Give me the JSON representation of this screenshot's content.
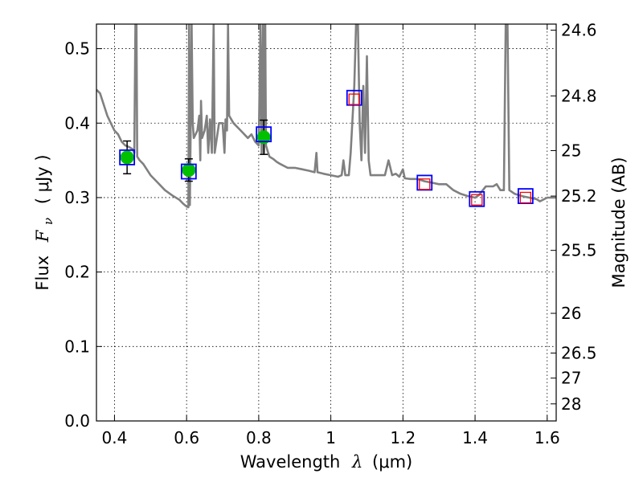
{
  "chart_data": {
    "type": "scatter",
    "xlabel": {
      "prefix": "Wavelength",
      "symbol": "λ",
      "unit": "(μm)"
    },
    "ylabel": {
      "prefix": "Flux",
      "symbol": "F",
      "subscript": "ν",
      "unit": "( μJy )"
    },
    "y2label": "Magnitude (AB)",
    "xlim": [
      0.35,
      1.625
    ],
    "ylim": [
      0.0,
      0.533
    ],
    "grid": true,
    "x_ticks": [
      {
        "value": 0.4,
        "label": "0.4"
      },
      {
        "value": 0.6,
        "label": "0.6"
      },
      {
        "value": 0.8,
        "label": "0.8"
      },
      {
        "value": 1.0,
        "label": "1"
      },
      {
        "value": 1.2,
        "label": "1.2"
      },
      {
        "value": 1.4,
        "label": "1.4"
      },
      {
        "value": 1.6,
        "label": "1.6"
      }
    ],
    "y_ticks": [
      {
        "value": 0.0,
        "label": "0.0"
      },
      {
        "value": 0.1,
        "label": "0.1"
      },
      {
        "value": 0.2,
        "label": "0.2"
      },
      {
        "value": 0.3,
        "label": "0.3"
      },
      {
        "value": 0.4,
        "label": "0.4"
      },
      {
        "value": 0.5,
        "label": "0.5"
      }
    ],
    "y2_ticks": [
      {
        "value": 24.6,
        "label": "24.6"
      },
      {
        "value": 24.8,
        "label": "24.8"
      },
      {
        "value": 25.0,
        "label": "25"
      },
      {
        "value": 25.2,
        "label": "25.2"
      },
      {
        "value": 25.5,
        "label": "25.5"
      },
      {
        "value": 26.0,
        "label": "26"
      },
      {
        "value": 26.5,
        "label": "26.5"
      },
      {
        "value": 27.0,
        "label": "27"
      },
      {
        "value": 28.0,
        "label": "28"
      }
    ],
    "series": [
      {
        "style": "model-spectrum-line",
        "color": "#808080",
        "points": [
          [
            0.35,
            0.445
          ],
          [
            0.36,
            0.44
          ],
          [
            0.37,
            0.425
          ],
          [
            0.38,
            0.41
          ],
          [
            0.39,
            0.4
          ],
          [
            0.4,
            0.39
          ],
          [
            0.41,
            0.385
          ],
          [
            0.42,
            0.375
          ],
          [
            0.43,
            0.37
          ],
          [
            0.44,
            0.368
          ],
          [
            0.45,
            0.365
          ],
          [
            0.455,
            0.36
          ],
          [
            0.458,
            0.533
          ],
          [
            0.461,
            0.533
          ],
          [
            0.463,
            0.355
          ],
          [
            0.47,
            0.35
          ],
          [
            0.48,
            0.345
          ],
          [
            0.5,
            0.33
          ],
          [
            0.52,
            0.32
          ],
          [
            0.54,
            0.31
          ],
          [
            0.56,
            0.303
          ],
          [
            0.58,
            0.297
          ],
          [
            0.59,
            0.292
          ],
          [
            0.6,
            0.288
          ],
          [
            0.605,
            0.287
          ],
          [
            0.607,
            0.533
          ],
          [
            0.609,
            0.29
          ],
          [
            0.612,
            0.42
          ],
          [
            0.614,
            0.533
          ],
          [
            0.617,
            0.4
          ],
          [
            0.62,
            0.38
          ],
          [
            0.63,
            0.39
          ],
          [
            0.635,
            0.41
          ],
          [
            0.638,
            0.35
          ],
          [
            0.64,
            0.43
          ],
          [
            0.643,
            0.38
          ],
          [
            0.65,
            0.39
          ],
          [
            0.656,
            0.41
          ],
          [
            0.66,
            0.36
          ],
          [
            0.665,
            0.405
          ],
          [
            0.67,
            0.36
          ],
          [
            0.675,
            0.533
          ],
          [
            0.678,
            0.36
          ],
          [
            0.69,
            0.4
          ],
          [
            0.7,
            0.4
          ],
          [
            0.705,
            0.36
          ],
          [
            0.708,
            0.405
          ],
          [
            0.712,
            0.39
          ],
          [
            0.715,
            0.533
          ],
          [
            0.718,
            0.41
          ],
          [
            0.73,
            0.4
          ],
          [
            0.75,
            0.39
          ],
          [
            0.77,
            0.38
          ],
          [
            0.78,
            0.385
          ],
          [
            0.79,
            0.375
          ],
          [
            0.8,
            0.37
          ],
          [
            0.805,
            0.533
          ],
          [
            0.808,
            0.36
          ],
          [
            0.812,
            0.533
          ],
          [
            0.815,
            0.36
          ],
          [
            0.818,
            0.533
          ],
          [
            0.82,
            0.37
          ],
          [
            0.825,
            0.362
          ],
          [
            0.83,
            0.355
          ],
          [
            0.84,
            0.352
          ],
          [
            0.85,
            0.348
          ],
          [
            0.86,
            0.345
          ],
          [
            0.88,
            0.34
          ],
          [
            0.9,
            0.34
          ],
          [
            0.92,
            0.338
          ],
          [
            0.94,
            0.336
          ],
          [
            0.955,
            0.334
          ],
          [
            0.96,
            0.36
          ],
          [
            0.963,
            0.334
          ],
          [
            0.98,
            0.332
          ],
          [
            1.0,
            0.33
          ],
          [
            1.02,
            0.328
          ],
          [
            1.03,
            0.33
          ],
          [
            1.035,
            0.35
          ],
          [
            1.04,
            0.33
          ],
          [
            1.05,
            0.33
          ],
          [
            1.055,
            0.36
          ],
          [
            1.065,
            0.45
          ],
          [
            1.07,
            0.533
          ],
          [
            1.075,
            0.533
          ],
          [
            1.08,
            0.4
          ],
          [
            1.085,
            0.35
          ],
          [
            1.09,
            0.45
          ],
          [
            1.095,
            0.36
          ],
          [
            1.1,
            0.49
          ],
          [
            1.105,
            0.35
          ],
          [
            1.11,
            0.33
          ],
          [
            1.13,
            0.33
          ],
          [
            1.15,
            0.33
          ],
          [
            1.16,
            0.35
          ],
          [
            1.17,
            0.33
          ],
          [
            1.18,
            0.332
          ],
          [
            1.19,
            0.328
          ],
          [
            1.2,
            0.338
          ],
          [
            1.205,
            0.326
          ],
          [
            1.22,
            0.325
          ],
          [
            1.24,
            0.325
          ],
          [
            1.26,
            0.322
          ],
          [
            1.28,
            0.32
          ],
          [
            1.3,
            0.318
          ],
          [
            1.32,
            0.318
          ],
          [
            1.34,
            0.31
          ],
          [
            1.36,
            0.305
          ],
          [
            1.38,
            0.302
          ],
          [
            1.4,
            0.3
          ],
          [
            1.41,
            0.303
          ],
          [
            1.43,
            0.315
          ],
          [
            1.45,
            0.315
          ],
          [
            1.46,
            0.318
          ],
          [
            1.47,
            0.31
          ],
          [
            1.48,
            0.31
          ],
          [
            1.485,
            0.533
          ],
          [
            1.49,
            0.533
          ],
          [
            1.495,
            0.31
          ],
          [
            1.51,
            0.305
          ],
          [
            1.53,
            0.302
          ],
          [
            1.55,
            0.3
          ],
          [
            1.57,
            0.298
          ],
          [
            1.58,
            0.295
          ],
          [
            1.6,
            0.3
          ],
          [
            1.625,
            0.3
          ]
        ]
      },
      {
        "style": "observed-points",
        "marker": "circle",
        "color": "#00c000",
        "errorbar_color": "#000000",
        "points": [
          {
            "x": 0.435,
            "y": 0.354,
            "yerr": 0.022
          },
          {
            "x": 0.606,
            "y": 0.337,
            "yerr": 0.015
          },
          {
            "x": 0.814,
            "y": 0.381,
            "yerr": 0.023
          }
        ]
      },
      {
        "style": "model-photometry",
        "marker": "square-open",
        "color": "#0000ff",
        "points": [
          {
            "x": 0.435,
            "y": 0.354
          },
          {
            "x": 0.606,
            "y": 0.335
          },
          {
            "x": 0.814,
            "y": 0.385
          },
          {
            "x": 1.065,
            "y": 0.434
          },
          {
            "x": 1.26,
            "y": 0.32
          },
          {
            "x": 1.405,
            "y": 0.298
          },
          {
            "x": 1.54,
            "y": 0.302
          }
        ]
      },
      {
        "style": "upper-limits",
        "marker": "square-open-small",
        "color": "#ff0000",
        "points": [
          {
            "x": 1.065,
            "y": 0.432
          },
          {
            "x": 1.26,
            "y": 0.318
          },
          {
            "x": 1.405,
            "y": 0.297
          },
          {
            "x": 1.54,
            "y": 0.3
          }
        ]
      }
    ]
  }
}
